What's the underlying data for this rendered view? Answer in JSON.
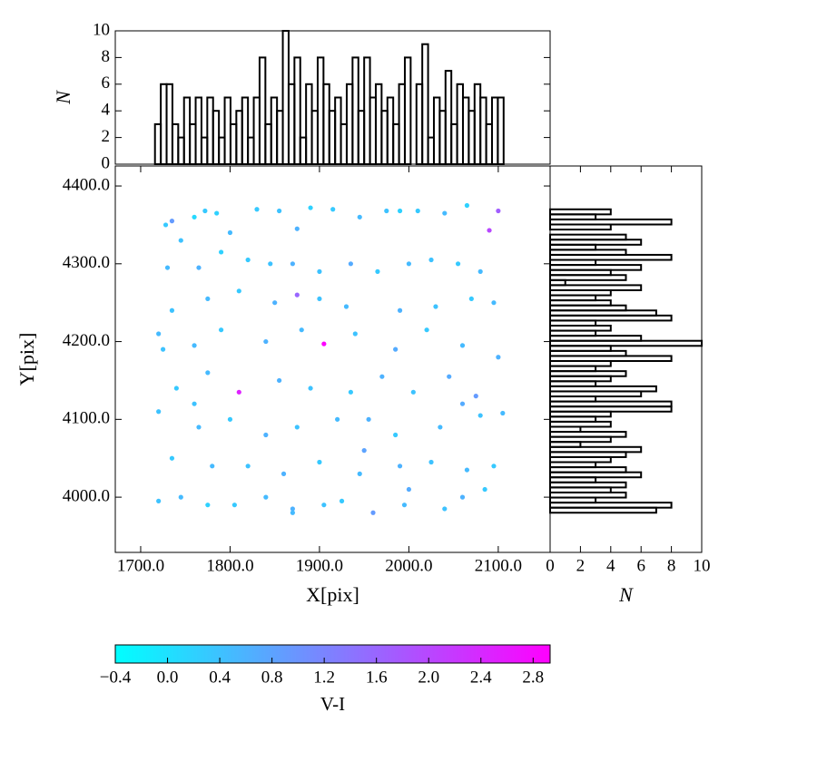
{
  "chart_data": [
    {
      "type": "scatter",
      "xlabel": "X[pix]",
      "ylabel": "Y[pix]",
      "xlim": [
        1671.6,
        2158
      ],
      "ylim": [
        3929,
        4425.7
      ],
      "xticks": [
        {
          "value": 1700,
          "label": "1700.0"
        },
        {
          "value": 1800,
          "label": "1800.0"
        },
        {
          "value": 1900,
          "label": "1900.0"
        },
        {
          "value": 2000,
          "label": "2000.0"
        },
        {
          "value": 2100,
          "label": "2100.0"
        }
      ],
      "yticks": [
        {
          "value": 4000,
          "label": "4000.0"
        },
        {
          "value": 4100,
          "label": "4100.0"
        },
        {
          "value": 4200,
          "label": "4200.0"
        },
        {
          "value": 4300,
          "label": "4300.0"
        },
        {
          "value": 4400,
          "label": "4400.0"
        }
      ],
      "x": [
        1720,
        1728,
        1735,
        1745,
        1760,
        1772,
        1785,
        1800,
        1830,
        1855,
        1875,
        1890,
        1915,
        1945,
        1975,
        1990,
        2010,
        2040,
        2065,
        2100,
        2090,
        1730,
        1765,
        1790,
        1820,
        1845,
        1870,
        1900,
        1935,
        1965,
        2000,
        2025,
        2055,
        2080,
        1875,
        1735,
        1775,
        1810,
        1850,
        1900,
        1930,
        1990,
        2030,
        2070,
        2095,
        1725,
        1760,
        1790,
        1840,
        1880,
        1905,
        1940,
        1985,
        2020,
        2060,
        2100,
        1810,
        1740,
        1775,
        1855,
        1890,
        1935,
        1970,
        2005,
        2045,
        2075,
        2105,
        1720,
        1765,
        1800,
        1840,
        1875,
        1920,
        1955,
        1985,
        2035,
        2080,
        1735,
        1780,
        1820,
        1860,
        1900,
        1945,
        1990,
        2025,
        2065,
        2095,
        1720,
        1745,
        1775,
        1805,
        1840,
        1870,
        1905,
        1925,
        1960,
        1995,
        2040,
        2060,
        2085,
        1870,
        2000,
        1950,
        2060,
        1760
      ],
      "y": [
        4210,
        4350,
        4355,
        4330,
        4360,
        4368,
        4365,
        4340,
        4370,
        4368,
        4345,
        4372,
        4370,
        4360,
        4368,
        4368,
        4368,
        4365,
        4375,
        4368,
        4343,
        4295,
        4295,
        4315,
        4305,
        4300,
        4300,
        4290,
        4300,
        4290,
        4300,
        4305,
        4300,
        4290,
        4260,
        4240,
        4255,
        4265,
        4250,
        4255,
        4245,
        4240,
        4245,
        4255,
        4250,
        4190,
        4195,
        4215,
        4200,
        4215,
        4197,
        4210,
        4190,
        4215,
        4195,
        4180,
        4135,
        4140,
        4160,
        4150,
        4140,
        4135,
        4155,
        4135,
        4155,
        4130,
        4108,
        4110,
        4090,
        4100,
        4080,
        4090,
        4100,
        4100,
        4080,
        4090,
        4105,
        4050,
        4040,
        4040,
        4030,
        4045,
        4030,
        4040,
        4045,
        4035,
        4040,
        3995,
        4000,
        3990,
        3990,
        4000,
        3985,
        3990,
        3995,
        3980,
        3990,
        3985,
        4000,
        4010,
        3980,
        4010,
        4060,
        4120,
        4120
      ],
      "c": [
        0.5,
        0.3,
        0.9,
        0.4,
        0.1,
        0.3,
        0.2,
        0.5,
        0.3,
        0.4,
        0.6,
        0.2,
        0.3,
        0.5,
        0.4,
        0.2,
        0.3,
        0.5,
        0.2,
        1.7,
        2.0,
        0.5,
        0.6,
        0.2,
        0.3,
        0.4,
        0.6,
        0.4,
        0.7,
        0.3,
        0.5,
        0.4,
        0.3,
        0.5,
        1.6,
        0.4,
        0.5,
        0.3,
        0.6,
        0.4,
        0.5,
        0.6,
        0.4,
        0.3,
        0.5,
        0.4,
        0.5,
        0.3,
        0.6,
        0.5,
        2.9,
        0.4,
        0.7,
        0.3,
        0.5,
        0.6,
        2.5,
        0.3,
        0.5,
        0.6,
        0.4,
        0.3,
        0.6,
        0.4,
        0.7,
        0.9,
        0.5,
        0.4,
        0.5,
        0.3,
        0.6,
        0.4,
        0.5,
        0.6,
        0.3,
        0.5,
        0.4,
        0.3,
        0.5,
        0.4,
        0.6,
        0.3,
        0.5,
        0.6,
        0.4,
        0.5,
        0.3,
        0.4,
        0.5,
        0.2,
        0.3,
        0.5,
        0.6,
        0.4,
        0.3,
        0.9,
        0.5,
        0.4,
        0.6,
        0.3,
        0.5,
        0.7,
        0.8,
        0.7,
        0.4
      ],
      "colorbar": {
        "label": "V-I",
        "lim": [
          -0.4,
          2.93
        ],
        "cmap": [
          "#00ffff",
          "#ff00ff"
        ],
        "ticks": [
          {
            "value": -0.4,
            "label": "−0.4"
          },
          {
            "value": 0,
            "label": "0.0"
          },
          {
            "value": 0.4,
            "label": "0.4"
          },
          {
            "value": 0.8,
            "label": "0.8"
          },
          {
            "value": 1.2,
            "label": "1.2"
          },
          {
            "value": 1.6,
            "label": "1.6"
          },
          {
            "value": 2,
            "label": "2.0"
          },
          {
            "value": 2.4,
            "label": "2.4"
          },
          {
            "value": 2.8,
            "label": "2.8"
          }
        ]
      }
    },
    {
      "type": "histogram",
      "ylabel": "N",
      "color": "#000000",
      "xlim": [
        1671.6,
        2158
      ],
      "ylim": [
        0,
        10
      ],
      "yticks": [
        0,
        2,
        4,
        6,
        8,
        10
      ],
      "bins": [
        1716,
        1722.5,
        1729,
        1735.5,
        1742,
        1748.5,
        1755,
        1761.5,
        1768,
        1774.5,
        1781,
        1787.5,
        1794,
        1800.5,
        1807,
        1813.5,
        1820,
        1826.5,
        1833,
        1839.5,
        1846,
        1852.5,
        1859,
        1865.5,
        1872,
        1878.5,
        1885,
        1891.5,
        1898,
        1904.5,
        1911,
        1917.5,
        1924,
        1930.5,
        1937,
        1943.5,
        1950,
        1956.5,
        1963,
        1969.5,
        1976,
        1982.5,
        1989,
        1995.5,
        2002,
        2008.5,
        2015,
        2021.5,
        2028,
        2034.5,
        2041,
        2047.5,
        2054,
        2060.5,
        2067,
        2073.5,
        2080,
        2086.5,
        2093,
        2099.5,
        2106
      ],
      "counts": [
        3,
        6,
        6,
        3,
        2,
        5,
        3,
        5,
        2,
        5,
        4,
        2,
        5,
        3,
        4,
        5,
        2,
        5,
        8,
        3,
        5,
        4,
        10,
        6,
        8,
        2,
        6,
        4,
        8,
        6,
        4,
        5,
        3,
        6,
        8,
        4,
        8,
        5,
        6,
        4,
        5,
        3,
        6,
        8,
        0,
        6,
        9,
        2,
        5,
        4,
        7,
        3,
        6,
        5,
        4,
        6,
        5,
        3,
        5,
        5
      ]
    },
    {
      "type": "histogram",
      "orientation": "horizontal",
      "xlabel": "N",
      "color": "#000000",
      "xlim": [
        0,
        10
      ],
      "xticks": [
        0,
        2,
        4,
        6,
        8,
        10
      ],
      "ylim": [
        3929,
        4425.7
      ],
      "bins": [
        3980,
        3986.5,
        3993,
        3999.5,
        4006,
        4012.5,
        4019,
        4025.5,
        4032,
        4038.5,
        4045,
        4051.5,
        4058,
        4064.5,
        4071,
        4077.5,
        4084,
        4090.5,
        4097,
        4103.5,
        4110,
        4116.5,
        4123,
        4129.5,
        4136,
        4142.5,
        4149,
        4155.5,
        4162,
        4168.5,
        4175,
        4181.5,
        4188,
        4194.5,
        4201,
        4207.5,
        4214,
        4220.5,
        4227,
        4233.5,
        4240,
        4246.5,
        4253,
        4259.5,
        4266,
        4272.5,
        4279,
        4285.5,
        4292,
        4298.5,
        4305,
        4311.5,
        4318,
        4324.5,
        4331,
        4337.5,
        4344,
        4350.5,
        4357,
        4363.5,
        4370
      ],
      "counts": [
        7,
        8,
        3,
        5,
        4,
        5,
        3,
        6,
        5,
        3,
        4,
        5,
        6,
        2,
        4,
        5,
        2,
        4,
        3,
        4,
        8,
        8,
        3,
        6,
        7,
        3,
        4,
        5,
        3,
        4,
        8,
        5,
        4,
        10,
        6,
        3,
        4,
        3,
        8,
        7,
        5,
        4,
        3,
        4,
        6,
        1,
        5,
        4,
        6,
        3,
        8,
        5,
        3,
        6,
        5,
        0,
        4,
        8,
        3,
        4
      ]
    }
  ]
}
